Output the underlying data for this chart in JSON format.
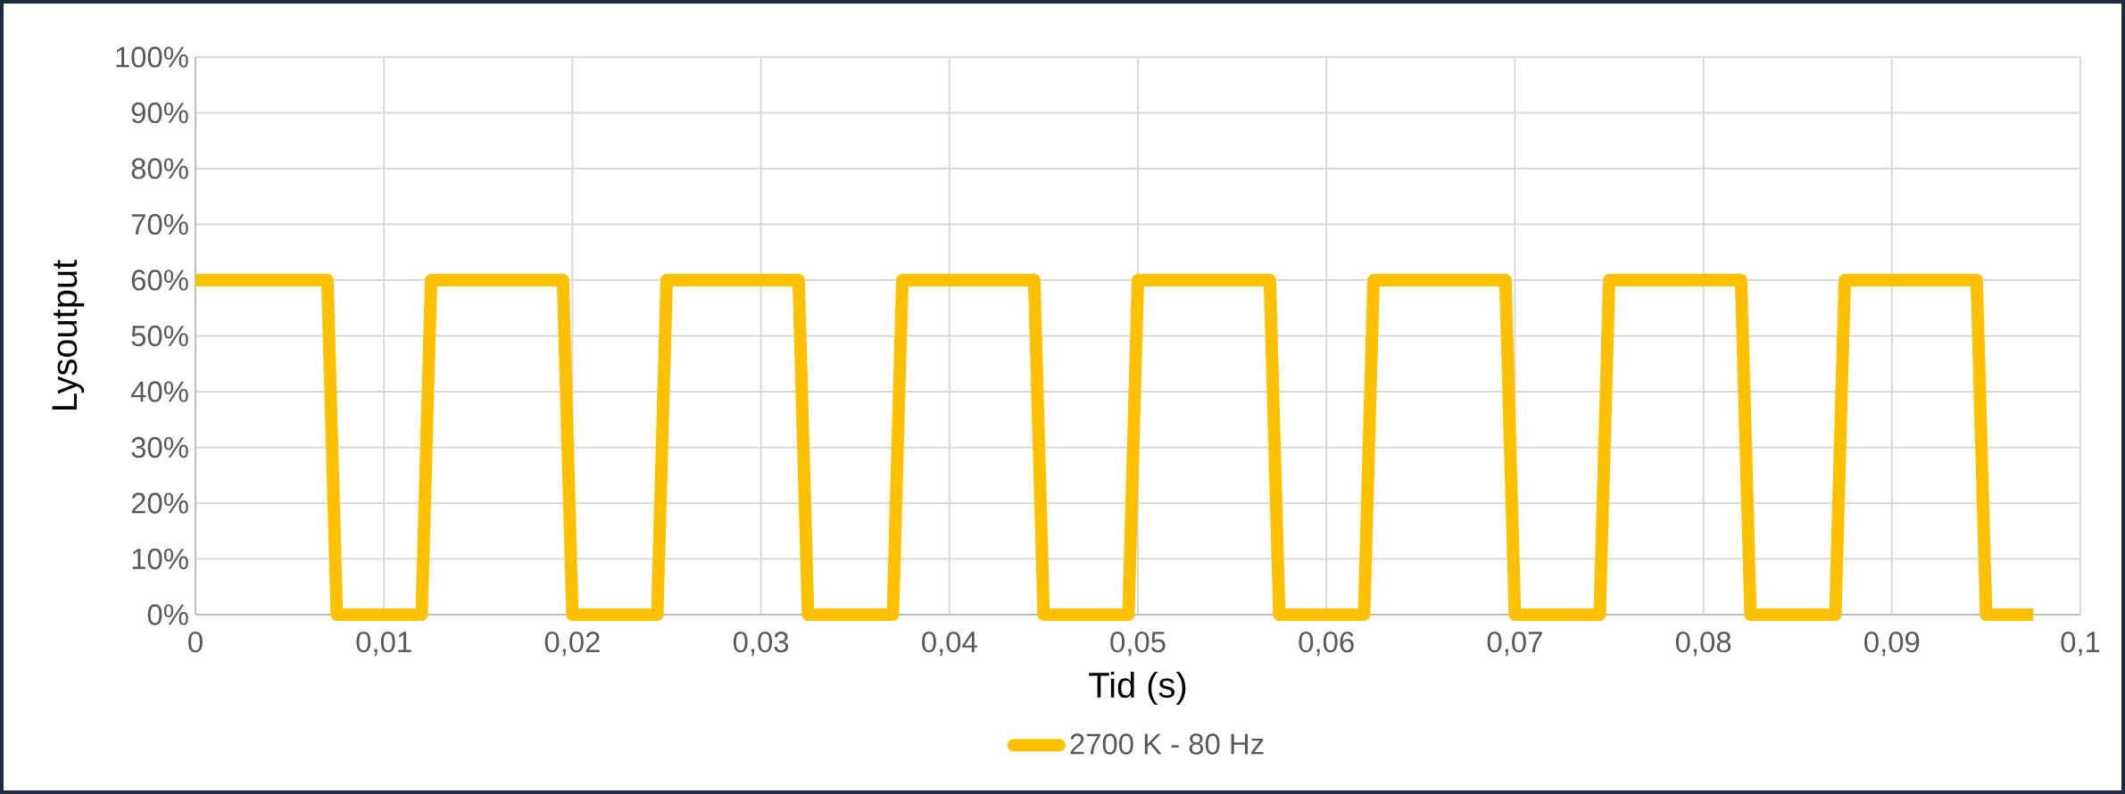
{
  "chart_data": {
    "type": "line",
    "xlabel": "Tid (s)",
    "ylabel": "Lysoutput",
    "x": [
      0,
      0.007,
      0.0075,
      0.012,
      0.0125,
      0.0195,
      0.02,
      0.0245,
      0.025,
      0.032,
      0.0325,
      0.037,
      0.0375,
      0.0445,
      0.045,
      0.0495,
      0.05,
      0.057,
      0.0575,
      0.062,
      0.0625,
      0.0695,
      0.07,
      0.0745,
      0.075,
      0.082,
      0.0825,
      0.087,
      0.0875,
      0.0945,
      0.095,
      0.0975
    ],
    "series": [
      {
        "name": "2700 K - 80 Hz",
        "color": "#ffc000",
        "values": [
          60,
          60,
          0,
          0,
          60,
          60,
          0,
          0,
          60,
          60,
          0,
          0,
          60,
          60,
          0,
          0,
          60,
          60,
          0,
          0,
          60,
          60,
          0,
          0,
          60,
          60,
          0,
          0,
          60,
          60,
          0,
          0
        ]
      }
    ],
    "xlim": [
      0,
      0.1
    ],
    "ylim": [
      0,
      100
    ],
    "xticks": [
      0,
      {
        "value": 0.01,
        "label": "0,01"
      },
      {
        "value": 0.02,
        "label": "0,02"
      },
      {
        "value": 0.03,
        "label": "0,03"
      },
      {
        "value": 0.04,
        "label": "0,04"
      },
      {
        "value": 0.05,
        "label": "0,05"
      },
      {
        "value": 0.06,
        "label": "0,06"
      },
      {
        "value": 0.07,
        "label": "0,07"
      },
      {
        "value": 0.08,
        "label": "0,08"
      },
      {
        "value": 0.09,
        "label": "0,09"
      },
      {
        "value": 0.1,
        "label": "0,1"
      }
    ],
    "yticks": [
      {
        "value": 0,
        "label": "0%"
      },
      {
        "value": 10,
        "label": "10%"
      },
      {
        "value": 20,
        "label": "20%"
      },
      {
        "value": 30,
        "label": "30%"
      },
      {
        "value": 40,
        "label": "40%"
      },
      {
        "value": 50,
        "label": "50%"
      },
      {
        "value": 60,
        "label": "60%"
      },
      {
        "value": 70,
        "label": "70%"
      },
      {
        "value": 80,
        "label": "80%"
      },
      {
        "value": 90,
        "label": "90%"
      },
      {
        "value": 100,
        "label": "100%"
      }
    ],
    "grid": true,
    "legend": "bottom",
    "marker": "none",
    "line_style": "solid"
  }
}
